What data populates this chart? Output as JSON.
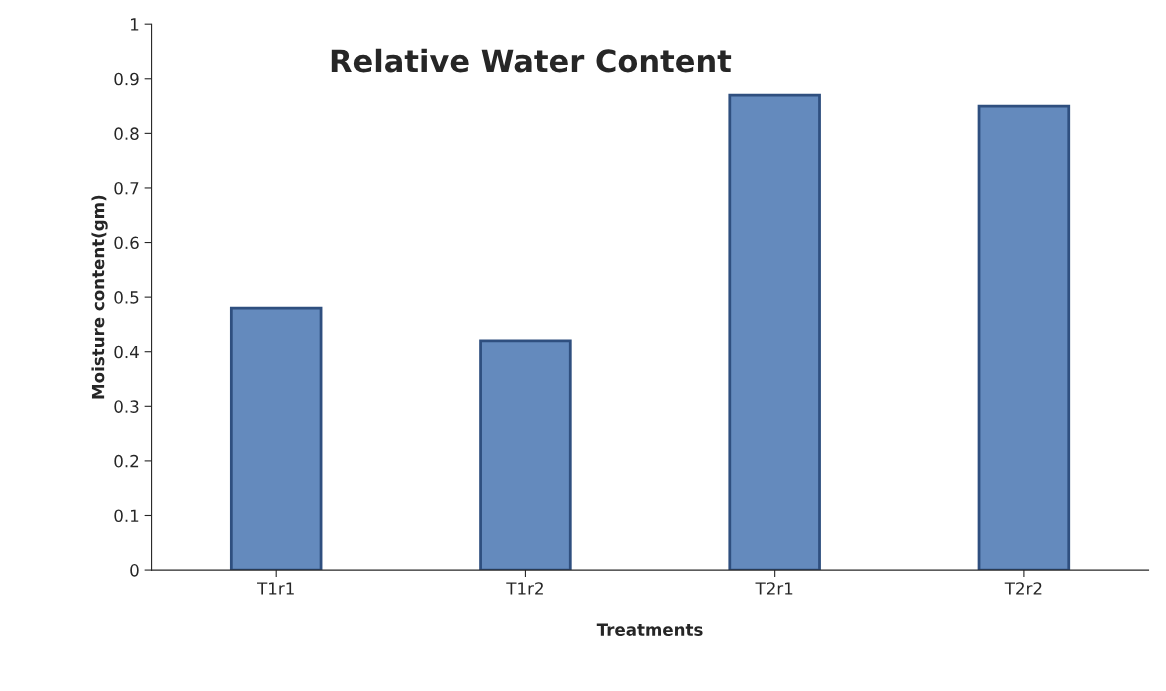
{
  "chart_data": {
    "type": "bar",
    "title": "Relative Water Content",
    "xlabel": "Treatments",
    "ylabel": "Moisture content(gm)",
    "categories": [
      "T1r1",
      "T1r2",
      "T2r1",
      "T2r2"
    ],
    "values": [
      0.48,
      0.42,
      0.87,
      0.85
    ],
    "color": "#5588cc",
    "ylim": [
      0,
      1
    ],
    "yticks": [
      0,
      0.1,
      0.2,
      0.3,
      0.4,
      0.5,
      0.6,
      0.7,
      0.8,
      0.9,
      1
    ],
    "grid": false,
    "legend": false
  }
}
